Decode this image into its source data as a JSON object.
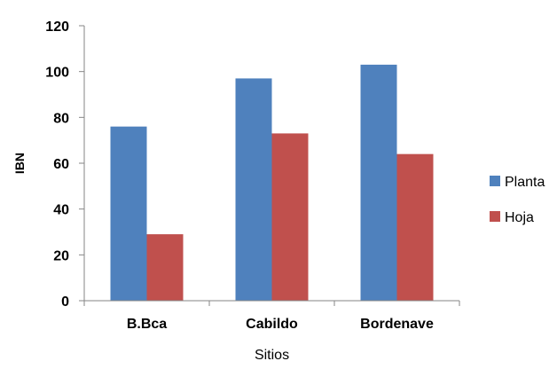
{
  "chart_data": {
    "type": "bar",
    "title": "",
    "xlabel": "Sitios",
    "ylabel": "IBN",
    "categories": [
      "B.Bca",
      "Cabildo",
      "Bordenave"
    ],
    "series": [
      {
        "name": "Planta",
        "color": "#4F81BD",
        "values": [
          76,
          97,
          103
        ]
      },
      {
        "name": "Hoja",
        "color": "#C0504D",
        "values": [
          29,
          73,
          64
        ]
      }
    ],
    "ylim": [
      0,
      120
    ],
    "yticks": [
      0,
      20,
      40,
      60,
      80,
      100,
      120
    ],
    "grid": false,
    "legend_position": "right"
  }
}
